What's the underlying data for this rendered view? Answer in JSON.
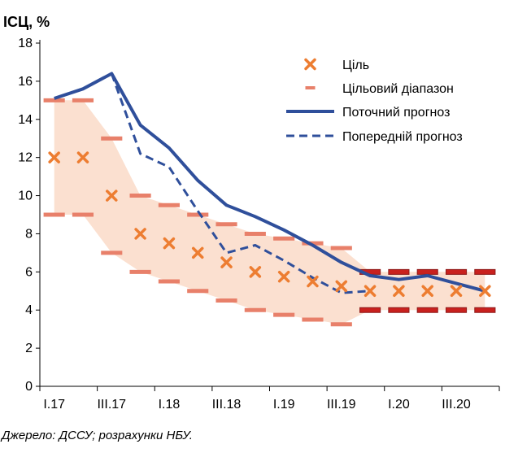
{
  "chart_data": {
    "type": "line",
    "ylabel": "ІСЦ, %",
    "source": "Джерело: ДССУ; розрахунки НБУ.",
    "ylim": [
      0,
      18
    ],
    "y_ticks": [
      "0",
      "2",
      "4",
      "6",
      "8",
      "10",
      "12",
      "14",
      "16",
      "18"
    ],
    "quarters": [
      "I.17",
      "II.17",
      "III.17",
      "IV.17",
      "I.18",
      "II.18",
      "III.18",
      "IV.18",
      "I.19",
      "II.19",
      "III.19",
      "IV.19",
      "I.20",
      "II.20",
      "III.20",
      "IV.20"
    ],
    "x_tick_labels": [
      "I.17",
      "III.17",
      "I.18",
      "III.18",
      "I.19",
      "III.19",
      "I.20",
      "III.20"
    ],
    "grid": false,
    "legend_position": "top-right",
    "colors": {
      "target": "#ED7D31",
      "range_fill": "#FBE0D0",
      "range_dash": "#E8806A",
      "range_dash_late": "#C9211E",
      "forecast": "#2F4F9B"
    },
    "series": [
      {
        "name": "Ціль",
        "kind": "marker",
        "values": [
          12,
          12,
          10,
          8,
          7.5,
          7,
          6.5,
          6,
          5.75,
          5.5,
          5.25,
          5,
          5,
          5,
          5,
          5
        ]
      },
      {
        "name": "Цільовий діапазон",
        "kind": "range",
        "upper": [
          15,
          15,
          13,
          10,
          9.5,
          9,
          8.5,
          8,
          7.75,
          7.5,
          7.25,
          6,
          6,
          6,
          6,
          6
        ],
        "lower": [
          9,
          9,
          7,
          6,
          5.5,
          5,
          4.5,
          4,
          3.75,
          3.5,
          3.25,
          4,
          4,
          4,
          4,
          4
        ]
      },
      {
        "name": "Поточний прогноз",
        "kind": "solid",
        "values": [
          15.1,
          15.6,
          16.4,
          13.7,
          12.5,
          10.8,
          9.5,
          8.9,
          8.2,
          7.4,
          6.5,
          5.8,
          5.6,
          5.8,
          5.4,
          5.0
        ]
      },
      {
        "name": "Попередній прогноз",
        "kind": "dashed",
        "start_index": 2,
        "values": [
          16.4,
          12.2,
          11.5,
          9.2,
          7.0,
          7.4,
          6.6,
          5.7,
          4.9,
          5.0
        ]
      }
    ]
  }
}
